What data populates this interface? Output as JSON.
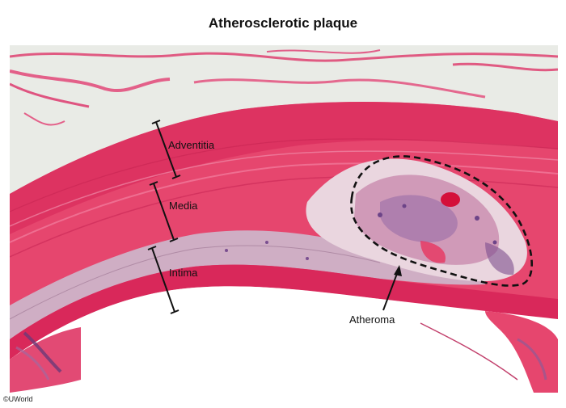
{
  "title": "Atherosclerotic plaque",
  "labels": {
    "adventitia": "Adventitia",
    "media": "Media",
    "intima": "Intima",
    "atheroma": "Atheroma"
  },
  "copyright": "©UWorld",
  "colors": {
    "background": "#e9ebe6",
    "tissue_pink": "#e6466e",
    "tissue_deep": "#cf2656",
    "media_pink": "#ea6690",
    "intima_pale": "#cfaec4",
    "plaque_pale": "#ead6df",
    "purple": "#8e5a96",
    "annotation": "#111111"
  }
}
